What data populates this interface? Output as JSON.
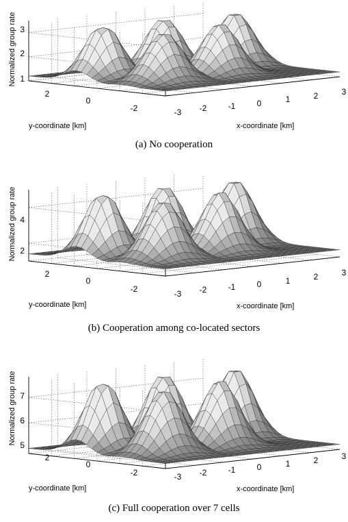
{
  "chart_data": [
    {
      "type": "surface",
      "caption": "(a) No cooperation",
      "zlabel": "Normalized group rate",
      "xlabel": "x-coordinate [km]",
      "ylabel": "y-coordinate [km]",
      "xlim": [
        -3,
        3
      ],
      "ylim": [
        -3,
        3
      ],
      "zlim": [
        1,
        3.5
      ],
      "zticks": [
        "1",
        "2",
        "3"
      ],
      "xticks": [
        "-3",
        "-2",
        "-1",
        "0",
        "1",
        "2",
        "3"
      ],
      "yticks": [
        "2",
        "0",
        "-2"
      ],
      "base": 1.2,
      "peak": 3.3,
      "grid": true
    },
    {
      "type": "surface",
      "caption": "(b) Cooperation among co-located sectors",
      "zlabel": "Normalized group rate",
      "xlabel": "x-coordinate [km]",
      "ylabel": "y-coordinate [km]",
      "xlim": [
        -3,
        3
      ],
      "ylim": [
        -3,
        3
      ],
      "zlim": [
        1,
        5
      ],
      "zticks": [
        "2",
        "4"
      ],
      "xticks": [
        "-3",
        "-2",
        "-1",
        "0",
        "1",
        "2",
        "3"
      ],
      "yticks": [
        "2",
        "0",
        "-2"
      ],
      "base": 1.4,
      "peak": 4.8,
      "grid": true
    },
    {
      "type": "surface",
      "caption": "(c) Full cooperation over 7 cells",
      "zlabel": "Normalized group rate",
      "xlabel": "x-coordinate [km]",
      "ylabel": "y-coordinate [km]",
      "xlim": [
        -3,
        3
      ],
      "ylim": [
        -3,
        3
      ],
      "zlim": [
        4.8,
        7.8
      ],
      "zticks": [
        "5",
        "6",
        "7"
      ],
      "xticks": [
        "-3",
        "-2",
        "-1",
        "0",
        "1",
        "2",
        "3"
      ],
      "yticks": [
        "2",
        "0",
        "-2"
      ],
      "base": 5.0,
      "peak": 7.6,
      "grid": true
    }
  ]
}
